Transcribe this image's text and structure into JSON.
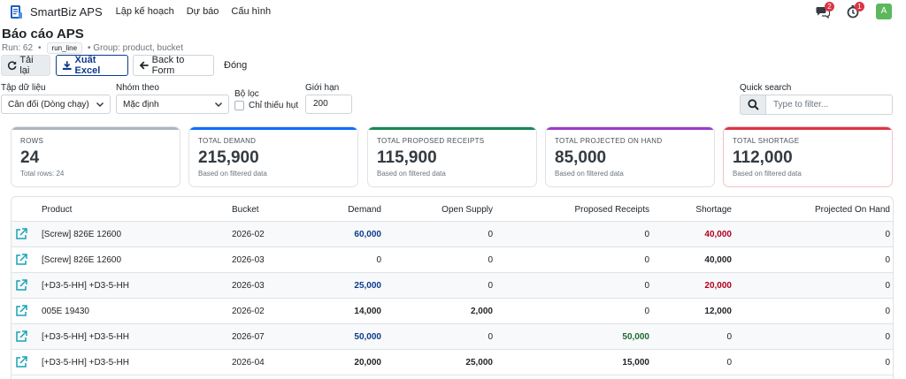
{
  "nav": {
    "brand": "SmartBiz APS",
    "links": [
      "Lập kế hoạch",
      "Dự báo",
      "Cấu hình"
    ],
    "chat_badge": "2",
    "timer_badge": "1",
    "avatar": "A"
  },
  "header": {
    "title": "Báo cáo APS",
    "run_label": "Run: 62",
    "run_sep": "•",
    "run_tag": "run_line",
    "group_text": "• Group: product, bucket"
  },
  "toolbar": {
    "reload": "Tải lại",
    "export": "Xuất Excel",
    "back": "Back to Form",
    "close": "Đóng"
  },
  "filters": {
    "dataset_label": "Tập dữ liệu",
    "dataset_value": "Cân đối (Dòng chạy)",
    "group_label": "Nhóm theo",
    "group_value": "Mặc định",
    "filter_label": "Bộ lọc",
    "shortage_only_label": "Chỉ thiếu hụt",
    "limit_label": "Giới hạn",
    "limit_value": "200",
    "search_label": "Quick search",
    "search_placeholder": "Type to filter..."
  },
  "cards": [
    {
      "label": "ROWS",
      "value": "24",
      "sub": "Total rows: 24",
      "color": "#adb5bd"
    },
    {
      "label": "TOTAL DEMAND",
      "value": "215,900",
      "sub": "Based on filtered data",
      "color": "#0d6efd"
    },
    {
      "label": "TOTAL PROPOSED RECEIPTS",
      "value": "115,900",
      "sub": "Based on filtered data",
      "color": "#198754"
    },
    {
      "label": "TOTAL PROJECTED ON HAND",
      "value": "85,000",
      "sub": "Based on filtered data",
      "color": "#9b3cc9"
    },
    {
      "label": "TOTAL SHORTAGE",
      "value": "112,000",
      "sub": "Based on filtered data",
      "color": "#dc3545"
    }
  ],
  "table": {
    "columns": [
      "Product",
      "Bucket",
      "Demand",
      "Open Supply",
      "Proposed Receipts",
      "Shortage",
      "Projected On Hand"
    ],
    "rows": [
      {
        "product": "[Screw] 826E 12600",
        "bucket": "2026-02",
        "demand": "60,000",
        "open_supply": "0",
        "proposed": "0",
        "shortage": "40,000",
        "onhand": "0"
      },
      {
        "product": "[Screw] 826E 12600",
        "bucket": "2026-03",
        "demand": "0",
        "open_supply": "0",
        "proposed": "0",
        "shortage": "40,000",
        "onhand": "0"
      },
      {
        "product": "[+D3-5-HH] +D3-5-HH",
        "bucket": "2026-03",
        "demand": "25,000",
        "open_supply": "0",
        "proposed": "0",
        "shortage": "20,000",
        "onhand": "0"
      },
      {
        "product": "005E 19430",
        "bucket": "2026-02",
        "demand": "14,000",
        "open_supply": "2,000",
        "proposed": "0",
        "shortage": "12,000",
        "onhand": "0"
      },
      {
        "product": "[+D3-5-HH] +D3-5-HH",
        "bucket": "2026-07",
        "demand": "50,000",
        "open_supply": "0",
        "proposed": "50,000",
        "shortage": "0",
        "onhand": "0"
      },
      {
        "product": "[+D3-5-HH] +D3-5-HH",
        "bucket": "2026-04",
        "demand": "20,000",
        "open_supply": "25,000",
        "proposed": "15,000",
        "shortage": "0",
        "onhand": "0"
      }
    ]
  }
}
